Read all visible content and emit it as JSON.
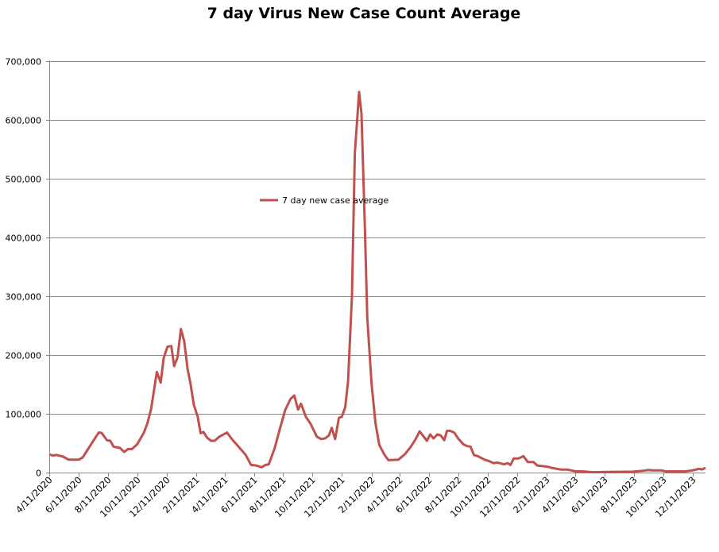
{
  "chart_data": {
    "type": "line",
    "title": "7 day Virus New Case Count Average",
    "xlabel": "",
    "ylabel": "",
    "ylim": [
      0,
      700000
    ],
    "xlim": [
      "2020-04-11",
      "2024-01-07"
    ],
    "yticks": [
      0,
      100000,
      200000,
      300000,
      400000,
      500000,
      600000,
      700000
    ],
    "ytick_labels": [
      "0",
      "100,000",
      "200,000",
      "300,000",
      "400,000",
      "500,000",
      "600,000",
      "700,000"
    ],
    "xtick_dates": [
      "2020-04-11",
      "2020-06-11",
      "2020-08-11",
      "2020-10-11",
      "2020-12-11",
      "2021-02-11",
      "2021-04-11",
      "2021-06-11",
      "2021-08-11",
      "2021-10-11",
      "2021-12-11",
      "2022-02-11",
      "2022-04-11",
      "2022-06-11",
      "2022-08-11",
      "2022-10-11",
      "2022-12-11",
      "2023-02-11",
      "2023-04-11",
      "2023-06-11",
      "2023-08-11",
      "2023-10-11",
      "2023-12-11"
    ],
    "xtick_labels": [
      "4/11/2020",
      "6/11/2020",
      "8/11/2020",
      "10/11/2020",
      "12/11/2020",
      "2/11/2021",
      "4/11/2021",
      "6/11/2021",
      "8/11/2021",
      "10/11/2021",
      "12/11/2021",
      "2/11/2022",
      "4/11/2022",
      "6/11/2022",
      "8/11/2022",
      "10/11/2022",
      "12/11/2022",
      "2/11/2023",
      "4/11/2023",
      "6/11/2023",
      "8/11/2023",
      "10/11/2023",
      "12/11/2023"
    ],
    "grid": "horizontal",
    "legend_position": "inside-top-left",
    "series": [
      {
        "name": "7 day new case average",
        "color": "#c0504d",
        "points": [
          [
            "2020-04-11",
            31000
          ],
          [
            "2020-04-18",
            29000
          ],
          [
            "2020-04-26",
            30000
          ],
          [
            "2020-05-10",
            27000
          ],
          [
            "2020-05-21",
            22000
          ],
          [
            "2020-06-12",
            22000
          ],
          [
            "2020-06-20",
            26000
          ],
          [
            "2020-07-07",
            48000
          ],
          [
            "2020-07-23",
            68000
          ],
          [
            "2020-07-29",
            67500
          ],
          [
            "2020-08-09",
            55000
          ],
          [
            "2020-08-16",
            54000
          ],
          [
            "2020-08-23",
            44000
          ],
          [
            "2020-09-05",
            42000
          ],
          [
            "2020-09-14",
            35000
          ],
          [
            "2020-09-22",
            40000
          ],
          [
            "2020-09-30",
            40000
          ],
          [
            "2020-10-11",
            48000
          ],
          [
            "2020-10-25",
            68000
          ],
          [
            "2020-11-01",
            83000
          ],
          [
            "2020-11-09",
            108000
          ],
          [
            "2020-11-21",
            171000
          ],
          [
            "2020-11-29",
            153000
          ],
          [
            "2020-12-05",
            194000
          ],
          [
            "2020-12-13",
            214000
          ],
          [
            "2020-12-21",
            215000
          ],
          [
            "2020-12-27",
            181000
          ],
          [
            "2021-01-03",
            196000
          ],
          [
            "2021-01-10",
            244000
          ],
          [
            "2021-01-17",
            223000
          ],
          [
            "2021-01-24",
            176000
          ],
          [
            "2021-01-30",
            151000
          ],
          [
            "2021-02-06",
            115000
          ],
          [
            "2021-02-14",
            95000
          ],
          [
            "2021-02-20",
            67000
          ],
          [
            "2021-02-26",
            69000
          ],
          [
            "2021-03-06",
            59000
          ],
          [
            "2021-03-14",
            54000
          ],
          [
            "2021-03-21",
            54000
          ],
          [
            "2021-03-31",
            61000
          ],
          [
            "2021-04-16",
            68000
          ],
          [
            "2021-04-27",
            56000
          ],
          [
            "2021-05-11",
            43000
          ],
          [
            "2021-05-25",
            30000
          ],
          [
            "2021-06-05",
            13000
          ],
          [
            "2021-06-16",
            12000
          ],
          [
            "2021-06-27",
            9000
          ],
          [
            "2021-07-05",
            13000
          ],
          [
            "2021-07-12",
            14000
          ],
          [
            "2021-07-24",
            41000
          ],
          [
            "2021-08-04",
            74000
          ],
          [
            "2021-08-15",
            106000
          ],
          [
            "2021-08-26",
            125000
          ],
          [
            "2021-09-03",
            131000
          ],
          [
            "2021-09-11",
            107000
          ],
          [
            "2021-09-17",
            117000
          ],
          [
            "2021-09-27",
            95000
          ],
          [
            "2021-10-07",
            83000
          ],
          [
            "2021-10-20",
            61000
          ],
          [
            "2021-10-29",
            57000
          ],
          [
            "2021-11-06",
            58000
          ],
          [
            "2021-11-14",
            63000
          ],
          [
            "2021-11-20",
            76000
          ],
          [
            "2021-11-27",
            57000
          ],
          [
            "2021-12-05",
            93000
          ],
          [
            "2021-12-11",
            95000
          ],
          [
            "2021-12-18",
            111000
          ],
          [
            "2021-12-24",
            155000
          ],
          [
            "2022-01-01",
            300000
          ],
          [
            "2022-01-07",
            542000
          ],
          [
            "2022-01-16",
            647000
          ],
          [
            "2022-01-21",
            610000
          ],
          [
            "2022-01-28",
            415000
          ],
          [
            "2022-02-02",
            263000
          ],
          [
            "2022-02-11",
            151000
          ],
          [
            "2022-02-19",
            84000
          ],
          [
            "2022-02-27",
            47000
          ],
          [
            "2022-03-10",
            30000
          ],
          [
            "2022-03-18",
            21000
          ],
          [
            "2022-04-08",
            22000
          ],
          [
            "2022-04-21",
            31000
          ],
          [
            "2022-05-03",
            43000
          ],
          [
            "2022-05-13",
            56000
          ],
          [
            "2022-05-22",
            70000
          ],
          [
            "2022-06-06",
            54000
          ],
          [
            "2022-06-13",
            65000
          ],
          [
            "2022-06-20",
            58000
          ],
          [
            "2022-06-28",
            65000
          ],
          [
            "2022-07-05",
            63000
          ],
          [
            "2022-07-12",
            55000
          ],
          [
            "2022-07-18",
            71000
          ],
          [
            "2022-07-24",
            71000
          ],
          [
            "2022-08-02",
            68000
          ],
          [
            "2022-08-10",
            58000
          ],
          [
            "2022-08-21",
            48000
          ],
          [
            "2022-08-29",
            45000
          ],
          [
            "2022-09-05",
            44000
          ],
          [
            "2022-09-12",
            30000
          ],
          [
            "2022-09-20",
            28000
          ],
          [
            "2022-10-04",
            22000
          ],
          [
            "2022-10-12",
            20000
          ],
          [
            "2022-10-23",
            16000
          ],
          [
            "2022-10-31",
            17000
          ],
          [
            "2022-11-14",
            14000
          ],
          [
            "2022-11-21",
            16000
          ],
          [
            "2022-11-27",
            13000
          ],
          [
            "2022-12-04",
            24000
          ],
          [
            "2022-12-14",
            24000
          ],
          [
            "2022-12-24",
            28000
          ],
          [
            "2023-01-02",
            18000
          ],
          [
            "2023-01-14",
            18000
          ],
          [
            "2023-01-22",
            12000
          ],
          [
            "2023-02-02",
            11000
          ],
          [
            "2023-02-12",
            10000
          ],
          [
            "2023-02-21",
            8000
          ],
          [
            "2023-03-13",
            5000
          ],
          [
            "2023-03-26",
            5000
          ],
          [
            "2023-04-12",
            2000
          ],
          [
            "2023-04-26",
            2000
          ],
          [
            "2023-05-18",
            500
          ],
          [
            "2023-06-14",
            1000
          ],
          [
            "2023-08-08",
            1500
          ],
          [
            "2023-08-30",
            3000
          ],
          [
            "2023-09-10",
            4500
          ],
          [
            "2023-09-19",
            3600
          ],
          [
            "2023-10-08",
            3600
          ],
          [
            "2023-10-16",
            2000
          ],
          [
            "2023-11-27",
            2000
          ],
          [
            "2023-12-13",
            4000
          ],
          [
            "2023-12-24",
            6300
          ],
          [
            "2023-12-31",
            5400
          ],
          [
            "2024-01-07",
            8000
          ]
        ]
      }
    ]
  }
}
